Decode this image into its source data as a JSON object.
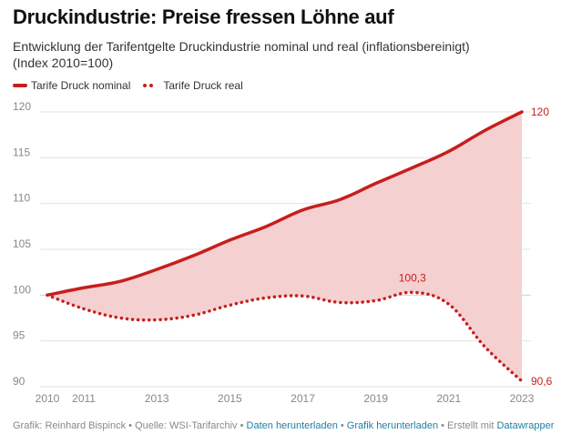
{
  "header": {
    "title": "Druckindustrie: Preise fressen Löhne auf",
    "subtitle_line1": "Entwicklung der Tarifentgelte Druckindustrie nominal und real (inflationsbereinigt)",
    "subtitle_line2": "(Index 2010=100)"
  },
  "legend": [
    {
      "label": "Tarife Druck nominal",
      "style": "solid"
    },
    {
      "label": "Tarife Druck real",
      "style": "dotted"
    }
  ],
  "colors": {
    "series": "#c71e1d",
    "fill": "#f4d0d0",
    "grid": "#e3e3e3",
    "tick": "#888888",
    "link": "#1d81a2"
  },
  "footer": {
    "author": "Grafik: Reinhard Bispinck",
    "source": "Quelle: WSI-Tarifarchiv",
    "download_data": "Daten herunterladen",
    "download_chart": "Grafik herunterladen",
    "created_with": "Erstellt mit",
    "tool": "Datawrapper",
    "separator": " • "
  },
  "chart_data": {
    "type": "line",
    "title": "Druckindustrie: Preise fressen Löhne auf",
    "subtitle": "Entwicklung der Tarifentgelte Druckindustrie nominal und real (inflationsbereinigt) (Index 2010=100)",
    "xlabel": "",
    "ylabel": "",
    "x": [
      2010,
      2011,
      2012,
      2013,
      2014,
      2015,
      2016,
      2017,
      2018,
      2019,
      2020,
      2021,
      2022,
      2023
    ],
    "xticks": [
      2010,
      2011,
      2013,
      2015,
      2017,
      2019,
      2021,
      2023
    ],
    "yticks": [
      90,
      95,
      100,
      105,
      110,
      115,
      120
    ],
    "ylim": [
      90,
      120
    ],
    "xlim": [
      2010,
      2023
    ],
    "grid": true,
    "legend_position": "top-left",
    "series": [
      {
        "name": "Tarife Druck nominal",
        "style": "solid",
        "values": [
          100,
          100.8,
          101.5,
          102.8,
          104.3,
          106.0,
          107.5,
          109.3,
          110.4,
          112.2,
          113.9,
          115.7,
          118.0,
          120.0
        ]
      },
      {
        "name": "Tarife Druck real",
        "style": "dotted",
        "values": [
          100,
          98.5,
          97.5,
          97.3,
          97.8,
          98.9,
          99.7,
          99.9,
          99.2,
          99.4,
          100.3,
          99.0,
          94.3,
          90.6
        ]
      }
    ],
    "area_between_series": true,
    "annotations": [
      {
        "series": "Tarife Druck nominal",
        "x": 2023,
        "text": "120"
      },
      {
        "series": "Tarife Druck real",
        "x": 2020,
        "text": "100,3"
      },
      {
        "series": "Tarife Druck real",
        "x": 2023,
        "text": "90,6"
      }
    ]
  }
}
